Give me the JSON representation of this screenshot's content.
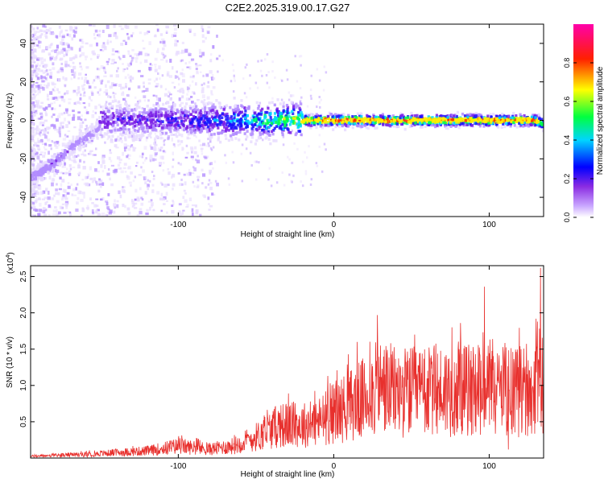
{
  "title": "C2E2.2025.319.00.17.G27",
  "chart_data": [
    {
      "type": "heatmap",
      "name": "spectrogram",
      "xlabel": "Height of straight line (km)",
      "ylabel": "Frequency (Hz)",
      "xlim": [
        -195,
        135
      ],
      "ylim": [
        -50,
        50
      ],
      "x_ticks": [
        -100,
        0,
        100
      ],
      "x_tick_labels": [
        "-100",
        "0",
        "100"
      ],
      "y_ticks": [
        -40,
        -20,
        0,
        20,
        40
      ],
      "y_tick_labels": [
        "-40",
        "-20",
        "0",
        "20",
        "40"
      ],
      "colorbar": {
        "label": "Normalized spectral amplitude",
        "range": [
          0,
          1
        ],
        "ticks": [
          0.0,
          0.2,
          0.4,
          0.6,
          0.8
        ],
        "tick_labels": [
          "0.0",
          "0.2",
          "0.4",
          "0.6",
          "0.8"
        ],
        "colors": [
          "#ffffff",
          "#8a2be2",
          "#0000ff",
          "#00ffff",
          "#00ff00",
          "#ffff00",
          "#ff0000",
          "#ff00ff"
        ]
      },
      "dominant_band": {
        "description_points_x": [
          -195,
          -180,
          -165,
          -152,
          -150,
          -100,
          -60,
          -20,
          0,
          50,
          100,
          130,
          135
        ],
        "frequency_hz": [
          -30,
          -22,
          -12,
          -5,
          0,
          0,
          0,
          0,
          0,
          0,
          0,
          0,
          -2
        ],
        "peak_amplitude": [
          0.2,
          0.25,
          0.2,
          0.15,
          0.3,
          0.35,
          0.5,
          0.8,
          0.95,
          0.9,
          0.9,
          0.9,
          0.6
        ]
      }
    },
    {
      "type": "line",
      "name": "snr",
      "xlabel": "Height of straight line (km)",
      "ylabel": "SNR (10 * v/v)",
      "y_multiplier_label": "(x10",
      "y_multiplier_exp": "4",
      "xlim": [
        -195,
        135
      ],
      "ylim": [
        0,
        2.65
      ],
      "x_ticks": [
        -100,
        0,
        100
      ],
      "x_tick_labels": [
        "-100",
        "0",
        "100"
      ],
      "y_ticks": [
        0.5,
        1.0,
        1.5,
        2.0,
        2.5
      ],
      "y_tick_labels": [
        "0.5",
        "1.0",
        "1.5",
        "2.0",
        "2.5"
      ],
      "color": "#e8302d",
      "envelope_x": [
        -195,
        -160,
        -120,
        -100,
        -80,
        -65,
        -50,
        -35,
        -20,
        -10,
        0,
        20,
        30,
        40,
        60,
        80,
        100,
        120,
        135
      ],
      "envelope_y": [
        0.03,
        0.06,
        0.12,
        0.2,
        0.15,
        0.2,
        0.35,
        0.55,
        0.55,
        0.6,
        0.75,
        1.0,
        1.2,
        1.1,
        1.1,
        1.15,
        1.1,
        1.1,
        1.2
      ],
      "spikes": [
        {
          "x": 15,
          "y": 1.6
        },
        {
          "x": 28,
          "y": 1.97
        },
        {
          "x": 52,
          "y": 1.7
        },
        {
          "x": 97,
          "y": 2.36
        },
        {
          "x": 133,
          "y": 2.62
        }
      ]
    }
  ]
}
